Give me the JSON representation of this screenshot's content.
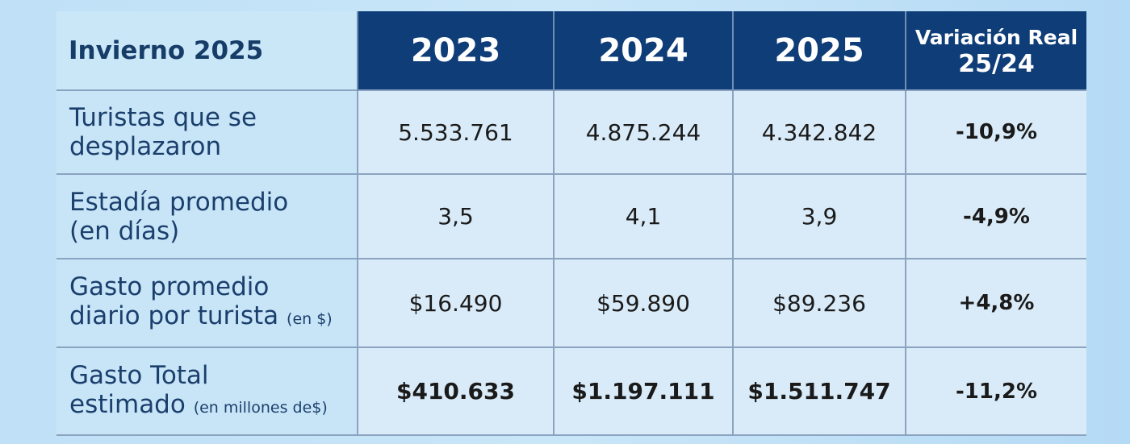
{
  "table": {
    "corner_label": "Invierno 2025",
    "columns": [
      "2023",
      "2024",
      "2025"
    ],
    "variation_header": {
      "line1": "Variación Real",
      "line2": "25/24"
    },
    "rows": [
      {
        "label_line1": "Turistas que se",
        "label_line2": "desplazaron",
        "label_unit": "",
        "values": [
          "5.533.761",
          "4.875.244",
          "4.342.842"
        ],
        "variation": "-10,9%"
      },
      {
        "label_line1": "Estadía promedio",
        "label_line2": "(en días)",
        "label_unit": "",
        "values": [
          "3,5",
          "4,1",
          "3,9"
        ],
        "variation": "-4,9%"
      },
      {
        "label_line1": "Gasto promedio",
        "label_line2": "diario por turista ",
        "label_unit": "(en $)",
        "values": [
          "$16.490",
          "$59.890",
          "$89.236"
        ],
        "variation": "+4,8%"
      },
      {
        "label_line1": "Gasto Total",
        "label_line2": "estimado ",
        "label_unit": "(en millones de$)",
        "values": [
          "$410.633",
          "$1.197.111",
          "$1.511.747"
        ],
        "variation": "-11,2%"
      }
    ]
  },
  "colors": {
    "header_bg": "#0e3d78",
    "label_text": "#1b3f6d",
    "cell_bg": "#d9ebf8",
    "page_bg": "#c9e6f8"
  }
}
